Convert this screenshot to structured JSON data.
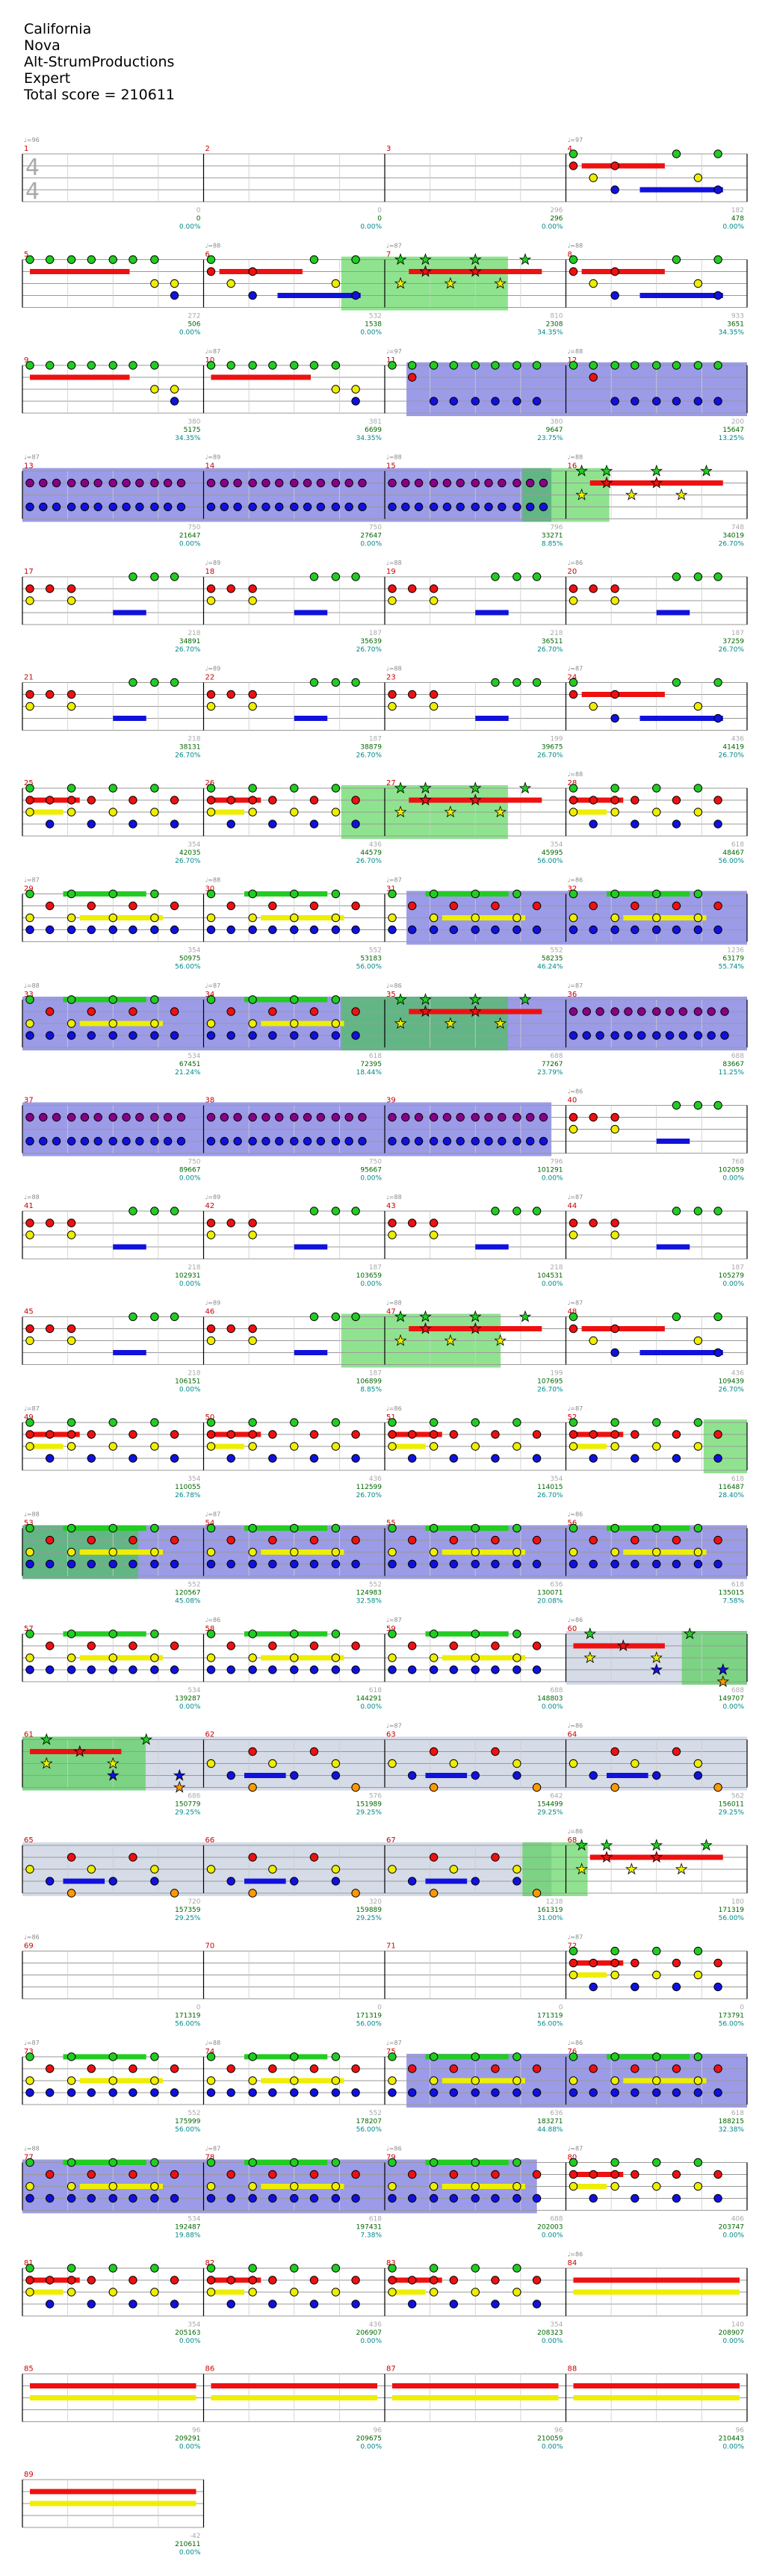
{
  "header": {
    "song": "California",
    "artist": "Nova",
    "charter": "Alt-StrumProductions",
    "difficulty": "Expert",
    "total_score": "Total score = 210611"
  },
  "colors": {
    "green": "#22cc22",
    "red": "#ee1111",
    "yellow": "#eeee00",
    "blue": "#1111dd",
    "orange": "#ff9900",
    "purple": "#880088",
    "sp_phrase": "#2222cc",
    "sp_solo": "#33cc33",
    "sp_unison": "#8899bb",
    "bar_number": "#cc0000",
    "score_text": "#006600",
    "percent_text": "#008888",
    "tempo_text": "#888888"
  },
  "time_signature": "4/4",
  "rows": [
    {
      "m": [
        1,
        2,
        3,
        4
      ],
      "s": [
        "0",
        "0",
        "296",
        "478"
      ],
      "p": [
        "0.00%",
        "0.00%",
        "0.00%",
        "0.00%"
      ],
      "b": [
        0,
        0,
        296,
        182
      ],
      "bpm": [
        "♩=96",
        "",
        "",
        "♩=97"
      ],
      "sp": [],
      "pat": [
        0,
        0,
        0,
        2
      ]
    },
    {
      "m": [
        5,
        6,
        7,
        8
      ],
      "s": [
        "506",
        "1538",
        "2308",
        "3651"
      ],
      "p": [
        "0.00%",
        "0.00%",
        "34.35%",
        "34.35%"
      ],
      "b": [
        272,
        532,
        810,
        933
      ],
      "bpm": [
        "",
        "♩=88",
        "♩=87",
        "♩=88"
      ],
      "sp": [
        {
          "a": 0.44,
          "b": 0.67,
          "t": "solo"
        }
      ],
      "pat": [
        1,
        2,
        3,
        2
      ]
    },
    {
      "m": [
        9,
        10,
        11,
        12
      ],
      "s": [
        "5175",
        "6699",
        "9647",
        "15647"
      ],
      "p": [
        "34.35%",
        "34.35%",
        "23.75%",
        "13.25%"
      ],
      "b": [
        380,
        381,
        380,
        200
      ],
      "bpm": [
        "",
        "♩=87",
        "♩=97",
        "♩=88"
      ],
      "sp": [
        {
          "a": 0.53,
          "b": 1.0,
          "t": "phrase"
        }
      ],
      "pat": [
        1,
        1,
        4,
        4
      ]
    },
    {
      "m": [
        13,
        14,
        15,
        16
      ],
      "s": [
        "21647",
        "27647",
        "33271",
        "34019"
      ],
      "p": [
        "0.00%",
        "0.00%",
        "8.85%",
        "26.70%"
      ],
      "b": [
        750,
        750,
        796,
        748
      ],
      "bpm": [
        "♩=87",
        "♩=89",
        "♩=88",
        "♩=88"
      ],
      "sp": [
        {
          "a": 0.0,
          "b": 0.73,
          "t": "phrase"
        },
        {
          "a": 0.69,
          "b": 0.81,
          "t": "solo"
        }
      ],
      "pat": [
        5,
        5,
        5,
        3
      ]
    },
    {
      "m": [
        17,
        18,
        19,
        20
      ],
      "s": [
        "34891",
        "35639",
        "36511",
        "37259"
      ],
      "p": [
        "26.70%",
        "26.70%",
        "26.70%",
        "26.70%"
      ],
      "b": [
        218,
        187,
        218,
        187
      ],
      "bpm": [
        "",
        "♩=89",
        "♩=88",
        "♩=86"
      ],
      "sp": [],
      "pat": [
        6,
        6,
        6,
        6
      ]
    },
    {
      "m": [
        21,
        22,
        23,
        24
      ],
      "s": [
        "38131",
        "38879",
        "39675",
        "41419"
      ],
      "p": [
        "26.70%",
        "26.70%",
        "26.70%",
        "26.70%"
      ],
      "b": [
        218,
        187,
        199,
        436
      ],
      "bpm": [
        "",
        "♩=89",
        "♩=88",
        "♩=87"
      ],
      "sp": [],
      "pat": [
        6,
        6,
        6,
        2
      ]
    },
    {
      "m": [
        25,
        26,
        27,
        28
      ],
      "s": [
        "42035",
        "44579",
        "45995",
        "48467"
      ],
      "p": [
        "26.70%",
        "26.70%",
        "56.00%",
        "56.00%"
      ],
      "b": [
        354,
        436,
        354,
        618
      ],
      "bpm": [
        "",
        "",
        "",
        "♩=88"
      ],
      "sp": [
        {
          "a": 0.44,
          "b": 0.67,
          "t": "solo"
        }
      ],
      "pat": [
        7,
        7,
        3,
        7
      ]
    },
    {
      "m": [
        29,
        30,
        31,
        32
      ],
      "s": [
        "50975",
        "53183",
        "58235",
        "63179"
      ],
      "p": [
        "56.00%",
        "56.00%",
        "46.24%",
        "55.74%"
      ],
      "b": [
        354,
        552,
        552,
        1236
      ],
      "bpm": [
        "♩=87",
        "♩=88",
        "♩=87",
        "♩=86"
      ],
      "sp": [
        {
          "a": 0.53,
          "b": 1.0,
          "t": "phrase"
        }
      ],
      "pat": [
        8,
        8,
        8,
        8
      ]
    },
    {
      "m": [
        33,
        34,
        35,
        36
      ],
      "s": [
        "67451",
        "72395",
        "77267",
        "83667"
      ],
      "p": [
        "21.24%",
        "18.44%",
        "23.79%",
        "11.25%"
      ],
      "b": [
        534,
        618,
        688,
        688
      ],
      "bpm": [
        "♩=88",
        "♩=87",
        "♩=86",
        "♩=87"
      ],
      "sp": [
        {
          "a": 0.0,
          "b": 1.0,
          "t": "phrase"
        },
        {
          "a": 0.44,
          "b": 0.67,
          "t": "solo"
        }
      ],
      "pat": [
        8,
        8,
        3,
        5
      ]
    },
    {
      "m": [
        37,
        38,
        39,
        40
      ],
      "s": [
        "89667",
        "95667",
        "101291",
        "102059"
      ],
      "p": [
        "0.00%",
        "0.00%",
        "0.00%",
        "0.00%"
      ],
      "b": [
        750,
        750,
        796,
        768
      ],
      "bpm": [
        "",
        "",
        "",
        "♩=86"
      ],
      "sp": [
        {
          "a": 0.0,
          "b": 0.73,
          "t": "phrase"
        }
      ],
      "pat": [
        5,
        5,
        5,
        6
      ]
    },
    {
      "m": [
        41,
        42,
        43,
        44
      ],
      "s": [
        "102931",
        "103659",
        "104531",
        "105279"
      ],
      "p": [
        "0.00%",
        "0.00%",
        "0.00%",
        "0.00%"
      ],
      "b": [
        218,
        187,
        218,
        187
      ],
      "bpm": [
        "♩=88",
        "♩=89",
        "♩=88",
        "♩=87"
      ],
      "sp": [],
      "pat": [
        6,
        6,
        6,
        6
      ]
    },
    {
      "m": [
        45,
        46,
        47,
        48
      ],
      "s": [
        "106151",
        "106899",
        "107695",
        "109439"
      ],
      "p": [
        "0.00%",
        "8.85%",
        "26.70%",
        "26.70%"
      ],
      "b": [
        218,
        187,
        199,
        436
      ],
      "bpm": [
        "",
        "♩=89",
        "♩=88",
        "♩=87"
      ],
      "sp": [
        {
          "a": 0.44,
          "b": 0.66,
          "t": "solo"
        }
      ],
      "pat": [
        6,
        6,
        3,
        2
      ]
    },
    {
      "m": [
        49,
        50,
        51,
        52
      ],
      "s": [
        "110055",
        "112599",
        "114015",
        "116487"
      ],
      "p": [
        "26.78%",
        "26.70%",
        "26.70%",
        "28.40%"
      ],
      "b": [
        354,
        436,
        354,
        618
      ],
      "bpm": [
        "♩=87",
        "",
        "♩=86",
        "♩=87"
      ],
      "sp": [
        {
          "a": 0.94,
          "b": 1.0,
          "t": "solo"
        }
      ],
      "pat": [
        7,
        7,
        7,
        7
      ]
    },
    {
      "m": [
        53,
        54,
        55,
        56
      ],
      "s": [
        "120567",
        "124983",
        "130071",
        "135015"
      ],
      "p": [
        "45.08%",
        "32.58%",
        "20.08%",
        "7.58%"
      ],
      "b": [
        552,
        552,
        636,
        618
      ],
      "bpm": [
        "♩=88",
        "♩=87",
        "",
        "♩=86"
      ],
      "sp": [
        {
          "a": 0.0,
          "b": 1.0,
          "t": "phrase"
        },
        {
          "a": 0.0,
          "b": 0.16,
          "t": "solo"
        }
      ],
      "pat": [
        8,
        8,
        8,
        8
      ]
    },
    {
      "m": [
        57,
        58,
        59,
        60
      ],
      "s": [
        "139287",
        "144291",
        "148803",
        "149707"
      ],
      "p": [
        "0.00%",
        "0.00%",
        "0.00%",
        "0.00%"
      ],
      "b": [
        534,
        618,
        688,
        688
      ],
      "bpm": [
        "",
        "♩=86",
        "♩=87",
        "♩=86"
      ],
      "sp": [
        {
          "a": 0.75,
          "b": 1.0,
          "t": "unison"
        },
        {
          "a": 0.91,
          "b": 1.0,
          "t": "solo"
        }
      ],
      "pat": [
        8,
        8,
        8,
        9
      ]
    },
    {
      "m": [
        61,
        62,
        63,
        64
      ],
      "s": [
        "150779",
        "151989",
        "154499",
        "156011"
      ],
      "p": [
        "29.25%",
        "29.25%",
        "29.25%",
        "29.25%"
      ],
      "b": [
        686,
        576,
        642,
        562
      ],
      "bpm": [
        "",
        "",
        "♩=87",
        "♩=86"
      ],
      "sp": [
        {
          "a": 0.0,
          "b": 1.0,
          "t": "unison"
        },
        {
          "a": 0.0,
          "b": 0.17,
          "t": "solo"
        }
      ],
      "pat": [
        9,
        10,
        10,
        10
      ]
    },
    {
      "m": [
        65,
        66,
        67,
        68
      ],
      "s": [
        "157359",
        "159889",
        "161319",
        "171319"
      ],
      "p": [
        "29.25%",
        "29.25%",
        "31.00%",
        "56.00%"
      ],
      "b": [
        720,
        320,
        1238,
        180
      ],
      "bpm": [
        "",
        "",
        "",
        "♩=86"
      ],
      "sp": [
        {
          "a": 0.0,
          "b": 0.73,
          "t": "unison"
        },
        {
          "a": 0.69,
          "b": 0.78,
          "t": "solo"
        }
      ],
      "pat": [
        10,
        10,
        10,
        3
      ]
    },
    {
      "m": [
        69,
        70,
        71,
        72
      ],
      "s": [
        "171319",
        "171319",
        "171319",
        "173791"
      ],
      "p": [
        "56.00%",
        "56.00%",
        "56.00%",
        "56.00%"
      ],
      "b": [
        0,
        0,
        0,
        0
      ],
      "bpm": [
        "♩=86",
        "",
        "",
        "♩=87"
      ],
      "sp": [],
      "pat": [
        0,
        0,
        0,
        7
      ]
    },
    {
      "m": [
        73,
        74,
        75,
        76
      ],
      "s": [
        "175999",
        "178207",
        "183271",
        "188215"
      ],
      "p": [
        "56.00%",
        "56.00%",
        "44.88%",
        "32.38%"
      ],
      "b": [
        552,
        552,
        636,
        618
      ],
      "bpm": [
        "♩=87",
        "♩=88",
        "♩=87",
        "♩=86"
      ],
      "sp": [
        {
          "a": 0.53,
          "b": 1.0,
          "t": "phrase"
        }
      ],
      "pat": [
        8,
        8,
        8,
        8
      ]
    },
    {
      "m": [
        77,
        78,
        79,
        80
      ],
      "s": [
        "192487",
        "197431",
        "202003",
        "203747"
      ],
      "p": [
        "19.88%",
        "7.38%",
        "0.00%",
        "0.00%"
      ],
      "b": [
        534,
        618,
        688,
        406
      ],
      "bpm": [
        "♩=88",
        "♩=87",
        "♩=86",
        "♩=87"
      ],
      "sp": [
        {
          "a": 0.0,
          "b": 0.71,
          "t": "phrase"
        }
      ],
      "pat": [
        8,
        8,
        8,
        7
      ]
    },
    {
      "m": [
        81,
        82,
        83,
        84
      ],
      "s": [
        "205163",
        "206907",
        "208323",
        "208907"
      ],
      "p": [
        "0.00%",
        "0.00%",
        "0.00%",
        "0.00%"
      ],
      "b": [
        354,
        436,
        354,
        140
      ],
      "bpm": [
        "",
        "",
        "",
        "♩=86"
      ],
      "sp": [],
      "pat": [
        7,
        7,
        7,
        11
      ]
    },
    {
      "m": [
        85,
        86,
        87,
        88
      ],
      "s": [
        "209291",
        "209675",
        "210059",
        "210443"
      ],
      "p": [
        "0.00%",
        "0.00%",
        "0.00%",
        "0.00%"
      ],
      "b": [
        96,
        96,
        96,
        96
      ],
      "bpm": [
        "",
        "",
        "",
        ""
      ],
      "sp": [],
      "pat": [
        11,
        11,
        11,
        11
      ]
    },
    {
      "m": [
        89
      ],
      "s": [
        "210611"
      ],
      "p": [
        "0.00%"
      ],
      "b": [
        -42
      ],
      "bpm": [
        ""
      ],
      "sp": [],
      "pat": [
        11
      ]
    }
  ]
}
